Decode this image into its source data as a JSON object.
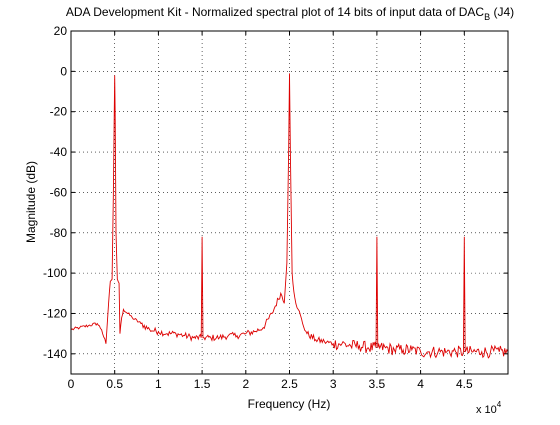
{
  "chart_data": {
    "type": "line",
    "title": "ADA Development Kit - Normalized spectral plot of 14 bits of input data of DAC",
    "title_subscript": "B",
    "title_suffix": " (J4)",
    "xlabel": "Frequency (Hz)",
    "ylabel": "Magnitude (dB)",
    "x_multiplier_label": "x 10",
    "x_multiplier_exponent": "4",
    "xlim": [
      0,
      50000
    ],
    "ylim": [
      -150,
      20
    ],
    "x_ticks": [
      0,
      5000,
      10000,
      15000,
      20000,
      25000,
      30000,
      35000,
      40000,
      45000
    ],
    "x_tick_labels": [
      "0",
      "0.5",
      "1",
      "1.5",
      "2",
      "2.5",
      "3",
      "3.5",
      "4",
      "4.5"
    ],
    "y_ticks": [
      20,
      0,
      -20,
      -40,
      -60,
      -80,
      -100,
      -120,
      -140
    ],
    "y_tick_labels": [
      "20",
      "0",
      "-20",
      "-40",
      "-60",
      "-80",
      "-100",
      "-120",
      "-140"
    ],
    "grid": true,
    "grid_style": "dotted",
    "line_color": "#dd0000",
    "series": [
      {
        "x": [
          0,
          1000,
          2000,
          3000,
          3500,
          4000,
          4300,
          4500,
          4700,
          4850,
          4950,
          5000,
          5050,
          5150,
          5300,
          5500,
          5600,
          5800,
          6000,
          7000,
          8000,
          9000,
          10000,
          11000,
          12000,
          13000,
          14000,
          14900,
          15000,
          15100,
          16000,
          17000,
          18000,
          19000,
          20000,
          21000,
          22000,
          23000,
          24000,
          24400,
          24700,
          24900,
          25000,
          25100,
          25300,
          25600,
          26000,
          26500,
          27000,
          28000,
          29000,
          30000,
          31000,
          32000,
          33000,
          34000,
          34900,
          35000,
          35100,
          36000,
          37000,
          38000,
          39000,
          40000,
          41000,
          42000,
          43000,
          44000,
          44900,
          45000,
          45100,
          46000,
          47000,
          48000,
          49000,
          50000
        ],
        "y": [
          -128,
          -127,
          -126,
          -125,
          -128,
          -135,
          -115,
          -104,
          -103,
          -60,
          -20,
          -2,
          -20,
          -80,
          -103,
          -105,
          -130,
          -122,
          -118,
          -122,
          -125,
          -128,
          -129,
          -130,
          -130,
          -131,
          -132,
          -132,
          -82,
          -132,
          -132,
          -132,
          -131,
          -131,
          -130,
          -129,
          -127,
          -120,
          -110,
          -115,
          -95,
          -40,
          -1,
          -40,
          -100,
          -112,
          -118,
          -125,
          -130,
          -133,
          -134,
          -135,
          -135,
          -136,
          -136,
          -137,
          -137,
          -82,
          -137,
          -137,
          -138,
          -138,
          -138,
          -139,
          -139,
          -139,
          -139,
          -139,
          -139,
          -82,
          -139,
          -139,
          -139,
          -139,
          -139,
          -139
        ]
      }
    ]
  }
}
